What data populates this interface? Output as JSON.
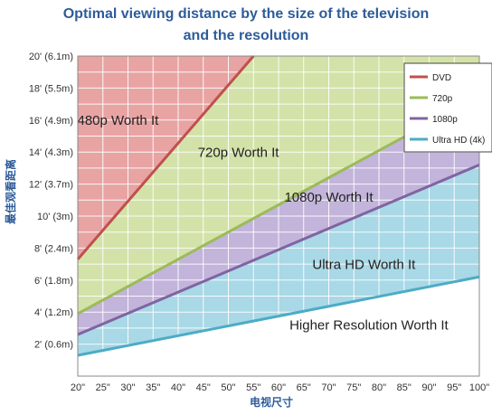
{
  "chart_data": {
    "type": "line",
    "title_line1": "Optimal viewing distance by the size of the television",
    "title_line2": "and the resolution",
    "xlabel": "电视尺寸",
    "ylabel": "最佳观看距离",
    "x_ticks": [
      "20\"",
      "25\"",
      "30\"",
      "35\"",
      "40\"",
      "45\"",
      "50\"",
      "55\"",
      "60\"",
      "65\"",
      "70\"",
      "75\"",
      "80\"",
      "85\"",
      "90\"",
      "95\"",
      "100\""
    ],
    "x_values": [
      20,
      25,
      30,
      35,
      40,
      45,
      50,
      55,
      60,
      65,
      70,
      75,
      80,
      85,
      90,
      95,
      100
    ],
    "y_ticks": [
      {
        "value": 2,
        "label": "2' (0.6m)"
      },
      {
        "value": 4,
        "label": "4' (1.2m)"
      },
      {
        "value": 6,
        "label": "6' (1.8m)"
      },
      {
        "value": 8,
        "label": "8' (2.4m)"
      },
      {
        "value": 10,
        "label": "10' (3m)"
      },
      {
        "value": 12,
        "label": "12' (3.7m)"
      },
      {
        "value": 14,
        "label": "14' (4.3m)"
      },
      {
        "value": 16,
        "label": "16' (4.9m)"
      },
      {
        "value": 18,
        "label": "18' (5.5m)"
      },
      {
        "value": 20,
        "label": "20' (6.1m)"
      }
    ],
    "xlim": [
      20,
      100
    ],
    "ylim": [
      0,
      20
    ],
    "grid": true,
    "legend_position": "top-right",
    "series": [
      {
        "name": "DVD",
        "color": "#c0504d",
        "x": [
          20,
          55
        ],
        "y": [
          7.3,
          20
        ]
      },
      {
        "name": "720p",
        "color": "#9bbb59",
        "x": [
          20,
          100
        ],
        "y": [
          3.9,
          17.5
        ]
      },
      {
        "name": "1080p",
        "color": "#8064a2",
        "x": [
          20,
          100
        ],
        "y": [
          2.6,
          13.2
        ]
      },
      {
        "name": "Ultra HD (4k)",
        "color": "#4bacc6",
        "x": [
          20,
          100
        ],
        "y": [
          1.3,
          6.2
        ]
      }
    ],
    "regions": [
      {
        "label": "480p Worth It",
        "color": "#e8a3a3",
        "x": 28,
        "y": 15.7
      },
      {
        "label": "720p Worth It",
        "color": "#d3e2a8",
        "x": 52,
        "y": 13.7
      },
      {
        "label": "1080p Worth It",
        "color": "#c2b4da",
        "x": 70,
        "y": 10.9
      },
      {
        "label": "Ultra HD Worth It",
        "color": "#a9d8e6",
        "x": 77,
        "y": 6.7
      },
      {
        "label": "Higher Resolution Worth It",
        "color": "#ffffff",
        "x": 78,
        "y": 2.9
      }
    ],
    "gridline_color": "#ffffff",
    "axis_color": "#888888"
  }
}
